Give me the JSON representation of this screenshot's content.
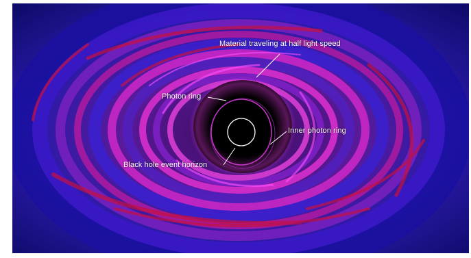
{
  "annotations": {
    "material": "Material traveling at half light speed",
    "photon_ring": "Photon ring",
    "inner_photon_ring": "Inner photon ring",
    "event_horizon": "Black hole event horizon"
  },
  "colors": {
    "disk_blue": "#2b1fd0",
    "disk_magenta": "#c822c8",
    "disk_red": "#c81040",
    "shadow": "#000000",
    "leader_line": "#ffffff"
  }
}
